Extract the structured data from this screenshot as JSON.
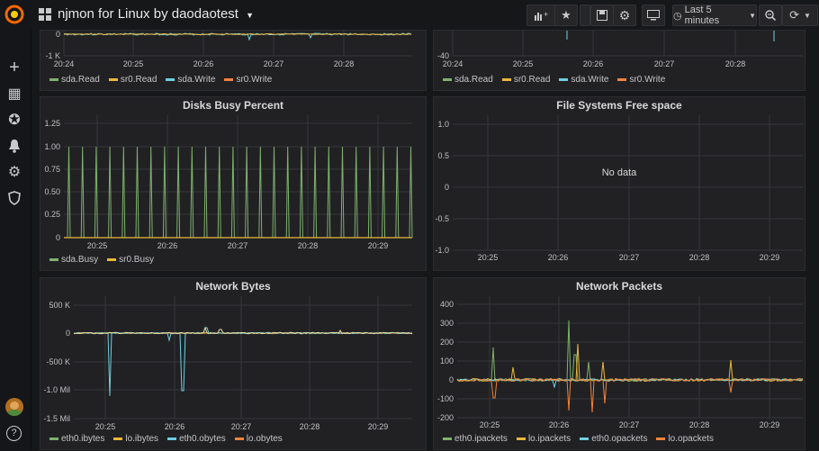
{
  "app": {
    "title": "njmon for Linux by daodaotest",
    "time_range": "Last 5 minutes"
  },
  "sidebar": {
    "items": [
      {
        "name": "create",
        "glyph": "+"
      },
      {
        "name": "dashboards",
        "glyph": "▦"
      },
      {
        "name": "explore",
        "glyph": "✪"
      },
      {
        "name": "alerting",
        "glyph": "🔔"
      },
      {
        "name": "configuration",
        "glyph": "⚙"
      },
      {
        "name": "server-admin",
        "glyph": "⛉"
      }
    ],
    "help_glyph": "?"
  },
  "colors": {
    "green": "#7eb26d",
    "yellow": "#eab839",
    "cyan": "#6ed0e0",
    "orange": "#ef843c"
  },
  "panels": {
    "top_left": {
      "y_ticks": [
        "0",
        "-1 K"
      ],
      "x_ticks": [
        "20:24",
        "20:25",
        "20:26",
        "20:27",
        "20:28"
      ],
      "legend": [
        "sda.Read",
        "sr0.Read",
        "sda.Write",
        "sr0.Write"
      ]
    },
    "top_right": {
      "y_ticks": [
        "-40"
      ],
      "x_ticks": [
        "20:24",
        "20:25",
        "20:26",
        "20:27",
        "20:28"
      ],
      "legend": [
        "sda.Read",
        "sr0.Read",
        "sda.Write",
        "sr0.Write"
      ]
    },
    "disks": {
      "title": "Disks Busy Percent",
      "y_ticks": [
        "1.25",
        "1.00",
        "0.75",
        "0.50",
        "0.25",
        "0"
      ],
      "x_ticks": [
        "20:25",
        "20:26",
        "20:27",
        "20:28",
        "20:29"
      ],
      "legend": [
        "sda.Busy",
        "sr0.Busy"
      ]
    },
    "fs": {
      "title": "File Systems Free space",
      "y_ticks": [
        "1.0",
        "0.5",
        "0",
        "-0.5",
        "-1.0"
      ],
      "x_ticks": [
        "20:25",
        "20:26",
        "20:27",
        "20:28",
        "20:29"
      ],
      "no_data": "No data"
    },
    "net_bytes": {
      "title": "Network Bytes",
      "y_ticks": [
        "500 K",
        "0",
        "-500 K",
        "-1.0 Mil",
        "-1.5 Mil"
      ],
      "x_ticks": [
        "20:25",
        "20:26",
        "20:27",
        "20:28",
        "20:29"
      ],
      "legend": [
        "eth0.ibytes",
        "lo.ibytes",
        "eth0.obytes",
        "lo.obytes"
      ]
    },
    "net_packets": {
      "title": "Network Packets",
      "y_ticks": [
        "400",
        "300",
        "200",
        "100",
        "0",
        "-100",
        "-200"
      ],
      "x_ticks": [
        "20:25",
        "20:26",
        "20:27",
        "20:28",
        "20:29"
      ],
      "legend": [
        "eth0.ipackets",
        "lo.ipackets",
        "eth0.opackets",
        "lo.opackets"
      ]
    }
  }
}
